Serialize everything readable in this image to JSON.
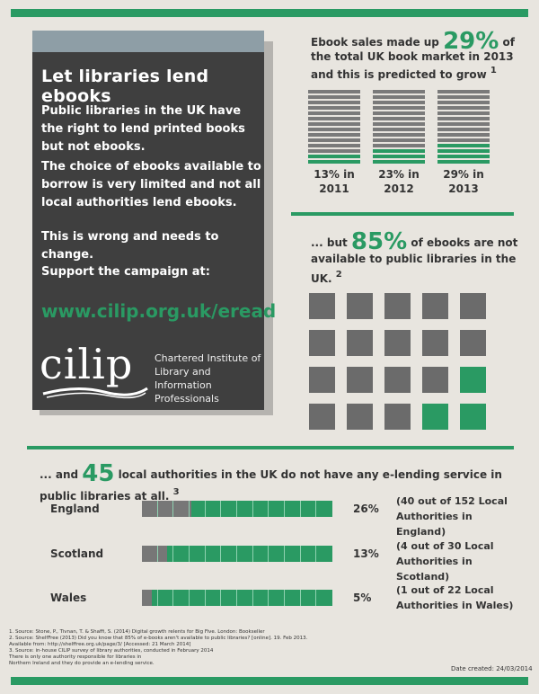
{
  "panel": {
    "title": "Let libraries lend ebooks",
    "p1": "Public libraries in the UK have the right to lend printed books but not ebooks.",
    "p2": "The choice of ebooks available to borrow is very limited and not all local authorities lend ebooks.",
    "p3": "This is wrong and needs to change.",
    "p4": "Support the campaign at:",
    "url": "www.cilip.org.uk/eread",
    "logo_text": "cilip",
    "logo_sub_1": "Chartered Institute of",
    "logo_sub_2": "Library and Information",
    "logo_sub_3": "Professionals"
  },
  "stat1": {
    "pre": "Ebook sales made up",
    "big": "29%",
    "post": "of the total UK book market in 2013 and this is predicted to grow",
    "ref": "1"
  },
  "years": [
    {
      "pct_label": "13% in",
      "year": "2011",
      "share": 13
    },
    {
      "pct_label": "23% in",
      "year": "2012",
      "share": 23
    },
    {
      "pct_label": "29% in",
      "year": "2013",
      "share": 29
    }
  ],
  "stat2": {
    "pre": "... but",
    "big": "85%",
    "post": "of ebooks are not available to public libraries in the UK.",
    "ref": "2"
  },
  "grid": {
    "total": 20,
    "available": 3
  },
  "stat3": {
    "pre": "... and",
    "big": "45",
    "post": "local authorities in the UK do not have any e-lending service in public libraries at all.",
    "ref": "3"
  },
  "regions": [
    {
      "name": "England",
      "pct": "26%",
      "value": 26,
      "note1": "(40 out of 152 Local",
      "note2": "Authorities in England)"
    },
    {
      "name": "Scotland",
      "pct": "13%",
      "value": 13,
      "note1": "(4 out of 30 Local",
      "note2": "Authorities in Scotland)"
    },
    {
      "name": "Wales",
      "pct": "5%",
      "value": 5,
      "note1": "(1 out of 22 Local",
      "note2": "Authorities in Wales)"
    }
  ],
  "footnotes": [
    "1. Source: Stone, P., Tivnan, T. & Shaffi, S. (2014) Digital growth relents for Big Five. London: Bookseller",
    "2. Source: ShelfFree (2013) Did you know that 85% of e-books aren't available to public libraries? [online]. 19. Feb 2013.",
    "Available from: http://shelffree.org.uk/page/3/ [Accessed: 21 March 2014]",
    "3. Source: in-house CILIP survey of library authorities, conducted in February 2014",
    "There is only one authority responsible for libraries in",
    "Northern Ireland and they do provide an e-lending service."
  ],
  "date": "Date created: 24/03/2014",
  "colors": {
    "green": "#2a9a63",
    "dark": "#3f3f3f",
    "grey": "#6b6b6b"
  }
}
